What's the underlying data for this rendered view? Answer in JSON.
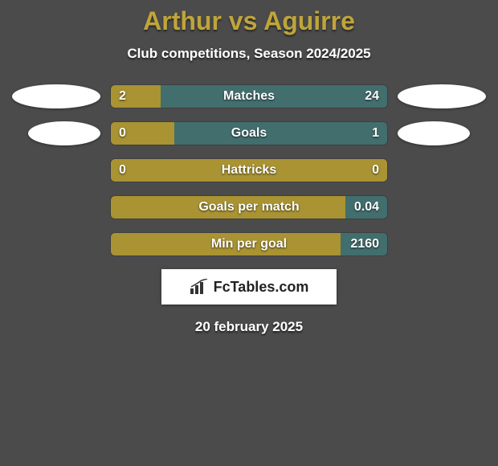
{
  "title": "Arthur vs Aguirre",
  "subtitle": "Club competitions, Season 2024/2025",
  "footer_date": "20 february 2025",
  "logo_text": "FcTables.com",
  "colors": {
    "left_bar": "#a99332",
    "right_bar": "#426e6e",
    "background": "#4b4b4b",
    "title": "#bfa53a",
    "text": "#ffffff",
    "ellipse": "#ffffff",
    "logo_bg": "#ffffff"
  },
  "rows": [
    {
      "label": "Matches",
      "left_value": "2",
      "right_value": "24",
      "left_pct": 18,
      "right_pct": 82,
      "show_ellipses": true,
      "ellipse_left_w": 110,
      "ellipse_right_w": 110
    },
    {
      "label": "Goals",
      "left_value": "0",
      "right_value": "1",
      "left_pct": 23,
      "right_pct": 77,
      "show_ellipses": true,
      "ellipse_left_w": 90,
      "ellipse_right_w": 90
    },
    {
      "label": "Hattricks",
      "left_value": "0",
      "right_value": "0",
      "left_pct": 100,
      "right_pct": 0,
      "show_ellipses": false
    },
    {
      "label": "Goals per match",
      "left_value": "",
      "right_value": "0.04",
      "left_pct": 85,
      "right_pct": 15,
      "show_ellipses": false
    },
    {
      "label": "Min per goal",
      "left_value": "",
      "right_value": "2160",
      "left_pct": 83,
      "right_pct": 17,
      "show_ellipses": false
    }
  ]
}
